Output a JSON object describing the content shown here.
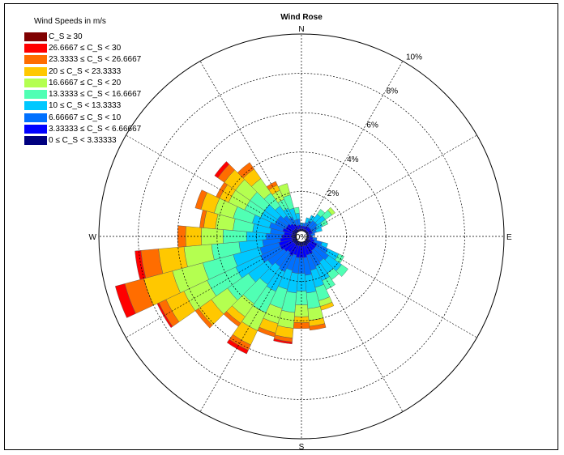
{
  "chart_data": {
    "type": "wind-rose",
    "title": "Wind Rose",
    "legend_title": "Wind Speeds in m/s",
    "legend_placement": "top-left",
    "radial_ticks": [
      "2%",
      "4%",
      "6%",
      "8%",
      "10%"
    ],
    "radial_max": 10,
    "center_label": "0%",
    "directions": [
      "N",
      "E",
      "S",
      "W"
    ],
    "grid": true,
    "bins": [
      {
        "label": "C_S ≥ 30",
        "color": "#7f0000"
      },
      {
        "label": "26.6667 ≤ C_S < 30",
        "color": "#ff0000"
      },
      {
        "label": "23.3333 ≤ C_S < 26.6667",
        "color": "#ff6d00"
      },
      {
        "label": "20 ≤ C_S < 23.3333",
        "color": "#ffc800"
      },
      {
        "label": "16.6667 ≤ C_S < 20",
        "color": "#b4ff50"
      },
      {
        "label": "13.3333 ≤ C_S < 16.6667",
        "color": "#50ffb4"
      },
      {
        "label": "10 ≤ C_S < 13.3333",
        "color": "#00c8ff"
      },
      {
        "label": "6.66667 ≤ C_S < 10",
        "color": "#0070ff"
      },
      {
        "label": "3.33333 ≤ C_S < 6.66667",
        "color": "#0000ff"
      },
      {
        "label": "0 ≤ C_S < 3.33333",
        "color": "#00007f"
      }
    ],
    "sectors": [
      {
        "dir": 0,
        "cum": [
          0.1,
          0.2,
          0.3,
          0.4
        ]
      },
      {
        "dir": 10,
        "cum": [
          0.1,
          0.25,
          0.4
        ]
      },
      {
        "dir": 20,
        "cum": [
          0.1,
          0.25,
          0.45,
          0.7
        ]
      },
      {
        "dir": 30,
        "cum": [
          0.1,
          0.3,
          0.6,
          0.9
        ]
      },
      {
        "dir": 40,
        "cum": [
          0.1,
          0.3,
          0.7,
          1.1,
          1.4
        ]
      },
      {
        "dir": 50,
        "cum": [
          0.1,
          0.3,
          0.7,
          1.2,
          1.6,
          1.8
        ]
      },
      {
        "dir": 60,
        "cum": [
          0.1,
          0.3,
          0.6,
          0.9,
          1.2
        ]
      },
      {
        "dir": 70,
        "cum": [
          0.1,
          0.3,
          0.5,
          0.8
        ]
      },
      {
        "dir": 80,
        "cum": [
          0.1,
          0.2,
          0.4
        ]
      },
      {
        "dir": 90,
        "cum": [
          0.1,
          0.2,
          0.3
        ]
      },
      {
        "dir": 100,
        "cum": [
          0.1,
          0.3,
          0.5
        ]
      },
      {
        "dir": 110,
        "cum": [
          0.1,
          0.4,
          0.8,
          1.1
        ]
      },
      {
        "dir": 120,
        "cum": [
          0.2,
          0.6,
          1.2,
          1.8,
          2.1
        ]
      },
      {
        "dir": 130,
        "cum": [
          0.2,
          0.6,
          1.4,
          2.2,
          2.6
        ]
      },
      {
        "dir": 140,
        "cum": [
          0.2,
          0.6,
          1.3,
          2.0,
          2.4
        ]
      },
      {
        "dir": 150,
        "cum": [
          0.2,
          0.7,
          1.4,
          2.2,
          2.7
        ]
      },
      {
        "dir": 160,
        "cum": [
          0.2,
          0.7,
          1.5,
          2.4,
          3.1,
          3.4,
          3.6
        ]
      },
      {
        "dir": 170,
        "cum": [
          0.2,
          0.8,
          1.7,
          2.6,
          3.4,
          4.0,
          4.3,
          4.5
        ]
      },
      {
        "dir": 180,
        "cum": [
          0.2,
          0.8,
          1.6,
          2.5,
          3.2,
          3.8,
          4.1,
          4.4
        ]
      },
      {
        "dir": 190,
        "cum": [
          0.2,
          0.8,
          1.6,
          2.6,
          3.6,
          4.4,
          4.9,
          5.1,
          5.2
        ]
      },
      {
        "dir": 200,
        "cum": [
          0.2,
          0.7,
          1.5,
          2.5,
          3.5,
          4.3,
          4.8,
          5.0
        ]
      },
      {
        "dir": 210,
        "cum": [
          0.2,
          0.8,
          1.7,
          2.8,
          4.0,
          5.0,
          5.8,
          6.1,
          6.3
        ]
      },
      {
        "dir": 220,
        "cum": [
          0.2,
          0.7,
          1.6,
          2.7,
          3.9,
          4.7,
          5.1,
          5.3
        ]
      },
      {
        "dir": 230,
        "cum": [
          0.2,
          0.8,
          1.8,
          3.0,
          4.3,
          5.3,
          6.1,
          6.3
        ]
      },
      {
        "dir": 240,
        "cum": [
          0.2,
          0.9,
          2.0,
          3.4,
          5.0,
          6.3,
          7.3,
          7.7,
          7.8
        ]
      },
      {
        "dir": 250,
        "cum": [
          0.2,
          0.9,
          1.9,
          3.3,
          4.9,
          6.5,
          8.0,
          9.0,
          9.5
        ]
      },
      {
        "dir": 260,
        "cum": [
          0.2,
          0.8,
          1.7,
          2.9,
          4.3,
          5.7,
          7.0,
          7.9,
          8.2
        ]
      },
      {
        "dir": 270,
        "cum": [
          0.2,
          0.7,
          1.5,
          2.5,
          3.7,
          4.8,
          5.6,
          6.0
        ]
      },
      {
        "dir": 280,
        "cum": [
          0.2,
          0.6,
          1.3,
          2.2,
          3.2,
          4.1,
          4.7,
          4.9
        ]
      },
      {
        "dir": 290,
        "cum": [
          0.2,
          0.7,
          1.4,
          2.3,
          3.3,
          4.3,
          5.0,
          5.3
        ]
      },
      {
        "dir": 300,
        "cum": [
          0.2,
          0.6,
          1.2,
          2.0,
          2.9,
          3.8,
          4.3,
          4.5
        ]
      },
      {
        "dir": 310,
        "cum": [
          0.2,
          0.6,
          1.2,
          2.0,
          2.9,
          3.8,
          4.5,
          4.9,
          5.1
        ]
      },
      {
        "dir": 320,
        "cum": [
          0.2,
          0.5,
          1.0,
          1.6,
          2.4,
          3.3,
          3.9,
          4.3
        ]
      },
      {
        "dir": 330,
        "cum": [
          0.1,
          0.4,
          0.8,
          1.3,
          1.8,
          2.3,
          2.6,
          2.8
        ]
      },
      {
        "dir": 340,
        "cum": [
          0.1,
          0.3,
          0.6,
          1.2,
          1.9,
          2.5
        ]
      },
      {
        "dir": 350,
        "cum": [
          0.1,
          0.3,
          0.6,
          0.9,
          1.2
        ]
      }
    ]
  }
}
